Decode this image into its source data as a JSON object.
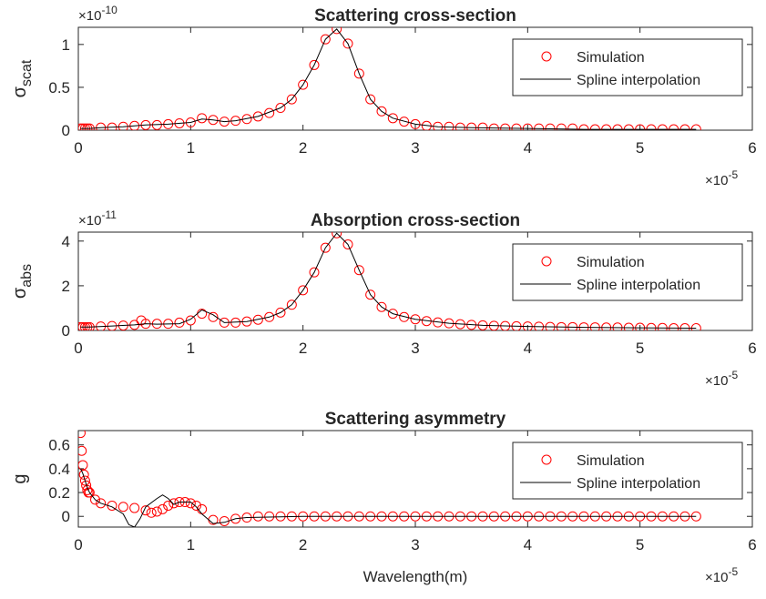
{
  "colors": {
    "simulation": "#ff0000",
    "spline": "#000000",
    "axes": "#262626"
  },
  "chart_data": [
    {
      "type": "line",
      "title": "Scattering cross-section",
      "ylabel": {
        "base": "σ",
        "sub": "scat"
      },
      "xlabel": "",
      "y_exponent": {
        "prefix": "×10",
        "power": "-10"
      },
      "x_exponent": {
        "prefix": "×10",
        "power": "-5"
      },
      "xlim": [
        0,
        6
      ],
      "ylim": [
        0,
        1.2
      ],
      "xticks": [
        0,
        1,
        2,
        3,
        4,
        5,
        6
      ],
      "xtick_labels": [
        "0",
        "1",
        "2",
        "3",
        "4",
        "5",
        "6"
      ],
      "yticks": [
        0,
        0.5,
        1
      ],
      "ytick_labels": [
        "0",
        "0.5",
        "1"
      ],
      "legend": {
        "position": "top-right",
        "entries": [
          "Simulation",
          "Spline interpolation"
        ]
      },
      "series": [
        {
          "name": "Simulation",
          "marker": "circle",
          "x": [
            0.02,
            0.04,
            0.06,
            0.08,
            0.1,
            0.2,
            0.3,
            0.4,
            0.5,
            0.6,
            0.7,
            0.8,
            0.9,
            1.0,
            1.1,
            1.2,
            1.3,
            1.4,
            1.5,
            1.6,
            1.7,
            1.8,
            1.9,
            2.0,
            2.1,
            2.2,
            2.3,
            2.4,
            2.5,
            2.6,
            2.7,
            2.8,
            2.9,
            3.0,
            3.1,
            3.2,
            3.3,
            3.4,
            3.5,
            3.6,
            3.7,
            3.8,
            3.9,
            4.0,
            4.1,
            4.2,
            4.3,
            4.4,
            4.5,
            4.6,
            4.7,
            4.8,
            4.9,
            5.0,
            5.1,
            5.2,
            5.3,
            5.4,
            5.5
          ],
          "y": [
            0.02,
            0.02,
            0.02,
            0.02,
            0.02,
            0.03,
            0.03,
            0.04,
            0.05,
            0.06,
            0.06,
            0.07,
            0.08,
            0.09,
            0.14,
            0.12,
            0.1,
            0.11,
            0.13,
            0.16,
            0.2,
            0.26,
            0.36,
            0.53,
            0.76,
            1.06,
            1.18,
            1.01,
            0.66,
            0.36,
            0.22,
            0.14,
            0.1,
            0.07,
            0.05,
            0.04,
            0.04,
            0.03,
            0.03,
            0.03,
            0.02,
            0.02,
            0.02,
            0.02,
            0.02,
            0.02,
            0.02,
            0.02,
            0.01,
            0.01,
            0.01,
            0.01,
            0.01,
            0.01,
            0.01,
            0.01,
            0.01,
            0.01,
            0.01
          ]
        },
        {
          "name": "Spline interpolation",
          "marker": "line",
          "x": [
            0.02,
            0.1,
            0.2,
            0.4,
            0.6,
            0.8,
            1.0,
            1.1,
            1.2,
            1.3,
            1.4,
            1.6,
            1.8,
            1.9,
            2.0,
            2.1,
            2.2,
            2.3,
            2.4,
            2.5,
            2.6,
            2.7,
            2.8,
            3.0,
            3.2,
            3.5,
            4.0,
            4.5,
            5.0,
            5.5
          ],
          "y": [
            0.02,
            0.02,
            0.03,
            0.04,
            0.06,
            0.07,
            0.09,
            0.13,
            0.12,
            0.1,
            0.11,
            0.16,
            0.26,
            0.36,
            0.53,
            0.76,
            1.06,
            1.18,
            1.01,
            0.66,
            0.36,
            0.22,
            0.14,
            0.07,
            0.04,
            0.03,
            0.02,
            0.01,
            0.01,
            0.01
          ]
        }
      ]
    },
    {
      "type": "line",
      "title": "Absorption cross-section",
      "ylabel": {
        "base": "σ",
        "sub": "abs"
      },
      "xlabel": "",
      "y_exponent": {
        "prefix": "×10",
        "power": "-11"
      },
      "x_exponent": {
        "prefix": "×10",
        "power": "-5"
      },
      "xlim": [
        0,
        6
      ],
      "ylim": [
        0,
        4.4
      ],
      "xticks": [
        0,
        1,
        2,
        3,
        4,
        5,
        6
      ],
      "xtick_labels": [
        "0",
        "1",
        "2",
        "3",
        "4",
        "5",
        "6"
      ],
      "yticks": [
        0,
        2,
        4
      ],
      "ytick_labels": [
        "0",
        "2",
        "4"
      ],
      "legend": {
        "position": "top-right",
        "entries": [
          "Simulation",
          "Spline interpolation"
        ]
      },
      "series": [
        {
          "name": "Simulation",
          "marker": "circle",
          "x": [
            0.02,
            0.04,
            0.06,
            0.08,
            0.1,
            0.2,
            0.3,
            0.4,
            0.5,
            0.56,
            0.6,
            0.7,
            0.8,
            0.9,
            1.0,
            1.1,
            1.2,
            1.3,
            1.4,
            1.5,
            1.6,
            1.7,
            1.8,
            1.9,
            2.0,
            2.1,
            2.2,
            2.3,
            2.4,
            2.5,
            2.6,
            2.7,
            2.8,
            2.9,
            3.0,
            3.1,
            3.2,
            3.3,
            3.4,
            3.5,
            3.6,
            3.7,
            3.8,
            3.9,
            4.0,
            4.1,
            4.2,
            4.3,
            4.4,
            4.5,
            4.6,
            4.7,
            4.8,
            4.9,
            5.0,
            5.1,
            5.2,
            5.3,
            5.4,
            5.5
          ],
          "y": [
            0.15,
            0.15,
            0.15,
            0.15,
            0.15,
            0.18,
            0.2,
            0.22,
            0.25,
            0.45,
            0.3,
            0.3,
            0.3,
            0.35,
            0.45,
            0.75,
            0.6,
            0.35,
            0.35,
            0.4,
            0.48,
            0.6,
            0.8,
            1.15,
            1.8,
            2.6,
            3.7,
            4.35,
            3.85,
            2.7,
            1.6,
            1.05,
            0.75,
            0.6,
            0.5,
            0.42,
            0.36,
            0.32,
            0.28,
            0.25,
            0.23,
            0.21,
            0.2,
            0.19,
            0.18,
            0.17,
            0.16,
            0.15,
            0.15,
            0.14,
            0.14,
            0.13,
            0.13,
            0.12,
            0.12,
            0.11,
            0.11,
            0.1,
            0.1,
            0.1
          ]
        },
        {
          "name": "Spline interpolation",
          "marker": "line",
          "x": [
            0.02,
            0.1,
            0.3,
            0.5,
            0.6,
            0.7,
            0.9,
            1.0,
            1.1,
            1.2,
            1.3,
            1.5,
            1.7,
            1.8,
            1.9,
            2.0,
            2.1,
            2.2,
            2.3,
            2.4,
            2.5,
            2.6,
            2.7,
            2.8,
            3.0,
            3.3,
            3.6,
            4.0,
            4.5,
            5.0,
            5.5
          ],
          "y": [
            0.15,
            0.15,
            0.2,
            0.25,
            0.3,
            0.28,
            0.3,
            0.5,
            0.92,
            0.7,
            0.35,
            0.4,
            0.6,
            0.8,
            1.15,
            1.8,
            2.6,
            3.7,
            4.35,
            3.85,
            2.7,
            1.6,
            1.05,
            0.75,
            0.5,
            0.32,
            0.23,
            0.18,
            0.14,
            0.12,
            0.1
          ]
        }
      ]
    },
    {
      "type": "line",
      "title": "Scattering asymmetry",
      "ylabel": {
        "base": "g",
        "sub": ""
      },
      "xlabel": "Wavelength(m)",
      "y_exponent": null,
      "x_exponent": {
        "prefix": "×10",
        "power": "-5"
      },
      "xlim": [
        0,
        6
      ],
      "ylim": [
        -0.09,
        0.72
      ],
      "xticks": [
        0,
        1,
        2,
        3,
        4,
        5,
        6
      ],
      "xtick_labels": [
        "0",
        "1",
        "2",
        "3",
        "4",
        "5",
        "6"
      ],
      "yticks": [
        0,
        0.2,
        0.4,
        0.6
      ],
      "ytick_labels": [
        "0",
        "0.2",
        "0.4",
        "0.6"
      ],
      "legend": {
        "position": "top-right",
        "entries": [
          "Simulation",
          "Spline interpolation"
        ]
      },
      "series": [
        {
          "name": "Simulation",
          "marker": "circle",
          "x": [
            0.02,
            0.03,
            0.04,
            0.05,
            0.06,
            0.07,
            0.08,
            0.09,
            0.1,
            0.15,
            0.2,
            0.3,
            0.4,
            0.5,
            0.6,
            0.65,
            0.7,
            0.75,
            0.8,
            0.85,
            0.9,
            0.95,
            1.0,
            1.05,
            1.1,
            1.2,
            1.3,
            1.4,
            1.5,
            1.6,
            1.7,
            1.8,
            1.9,
            2.0,
            2.1,
            2.2,
            2.3,
            2.4,
            2.5,
            2.6,
            2.7,
            2.8,
            2.9,
            3.0,
            3.1,
            3.2,
            3.3,
            3.4,
            3.5,
            3.6,
            3.7,
            3.8,
            3.9,
            4.0,
            4.1,
            4.2,
            4.3,
            4.4,
            4.5,
            4.6,
            4.7,
            4.8,
            4.9,
            5.0,
            5.1,
            5.2,
            5.3,
            5.4,
            5.5
          ],
          "y": [
            0.7,
            0.55,
            0.43,
            0.35,
            0.3,
            0.26,
            0.22,
            0.2,
            0.2,
            0.14,
            0.11,
            0.09,
            0.08,
            0.07,
            0.05,
            0.03,
            0.04,
            0.06,
            0.09,
            0.11,
            0.12,
            0.12,
            0.11,
            0.09,
            0.06,
            -0.03,
            -0.04,
            -0.02,
            -0.01,
            0,
            0,
            0,
            0,
            0,
            0,
            0,
            0,
            0,
            0,
            0,
            0,
            0,
            0,
            0,
            0,
            0,
            0,
            0,
            0,
            0,
            0,
            0,
            0,
            0,
            0,
            0,
            0,
            0,
            0,
            0,
            0,
            0,
            0,
            0,
            0,
            0,
            0,
            0,
            0
          ]
        },
        {
          "name": "Spline interpolation",
          "marker": "line",
          "x": [
            0.02,
            0.04,
            0.06,
            0.08,
            0.1,
            0.15,
            0.2,
            0.3,
            0.4,
            0.45,
            0.5,
            0.55,
            0.6,
            0.7,
            0.75,
            0.8,
            0.85,
            0.9,
            1.0,
            1.05,
            1.1,
            1.2,
            1.3,
            1.4,
            1.5,
            2.0,
            3.0,
            4.0,
            5.0,
            5.5
          ],
          "y": [
            0.4,
            0.36,
            0.3,
            0.24,
            0.2,
            0.14,
            0.11,
            0.08,
            0.02,
            -0.07,
            -0.09,
            -0.02,
            0.08,
            0.15,
            0.18,
            0.15,
            0.1,
            0.12,
            0.12,
            0.08,
            0.02,
            -0.06,
            -0.05,
            -0.02,
            -0.01,
            0,
            0,
            0,
            0,
            0
          ]
        }
      ]
    }
  ]
}
